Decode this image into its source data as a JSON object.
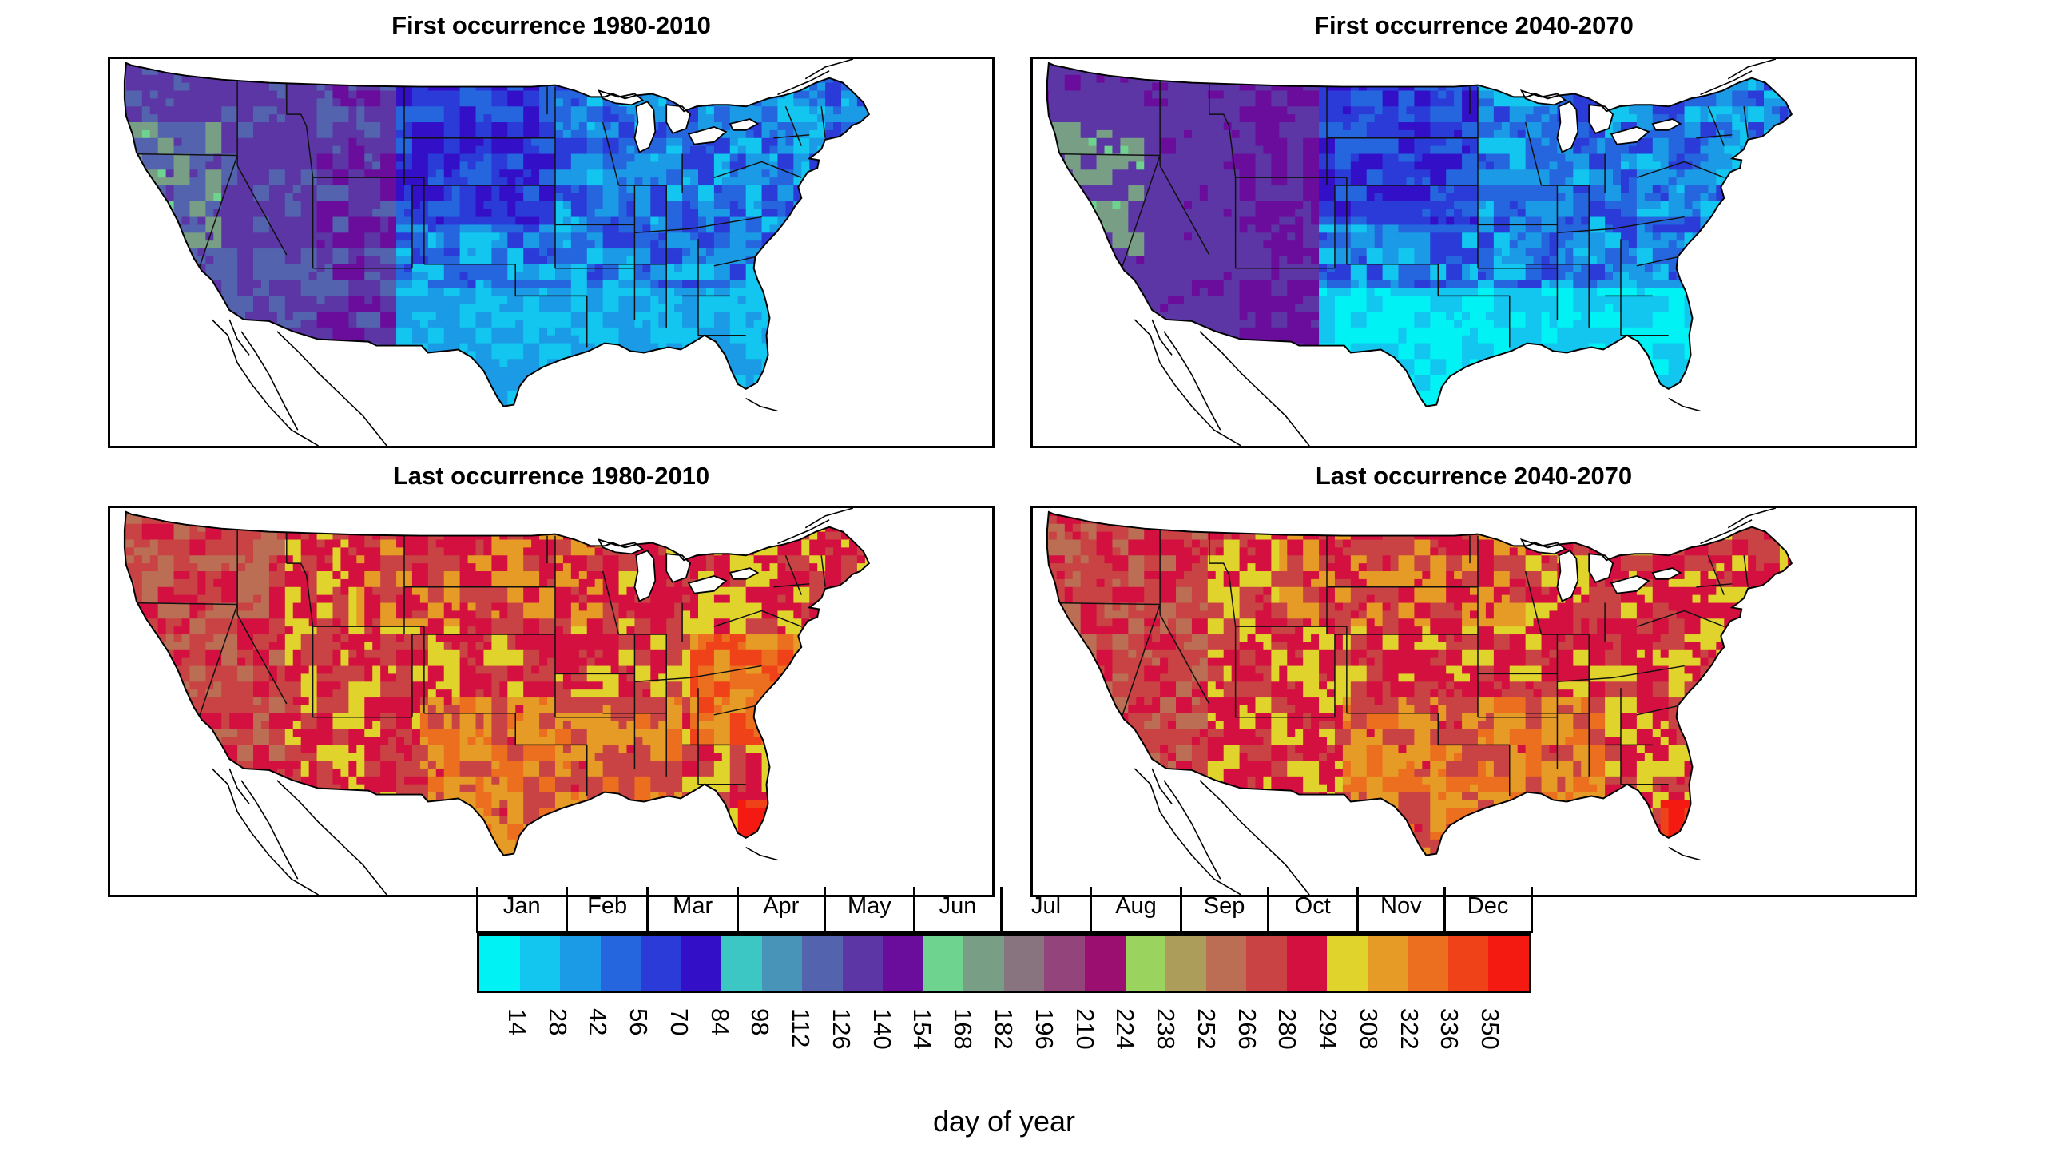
{
  "panels": [
    {
      "title": "First occurrence 1980-2010",
      "kind": "first",
      "period": "hist"
    },
    {
      "title": "First occurrence 2040-2070",
      "kind": "first",
      "period": "future"
    },
    {
      "title": "Last occurrence 1980-2010",
      "kind": "last",
      "period": "hist"
    },
    {
      "title": "Last occurrence 2040-2070",
      "kind": "last",
      "period": "future"
    }
  ],
  "legend": {
    "months": [
      "Jan",
      "Feb",
      "Mar",
      "Apr",
      "May",
      "Jun",
      "Jul",
      "Aug",
      "Sep",
      "Oct",
      "Nov",
      "Dec"
    ],
    "ticks": [
      "14",
      "28",
      "42",
      "56",
      "70",
      "84",
      "98",
      "112",
      "126",
      "140",
      "154",
      "168",
      "182",
      "196",
      "210",
      "224",
      "238",
      "252",
      "266",
      "280",
      "294",
      "308",
      "322",
      "336",
      "350"
    ],
    "colors": [
      "#00f2f4",
      "#12c6ef",
      "#1b9ae6",
      "#2566df",
      "#2a3bd8",
      "#3310c8",
      "#3cc6c4",
      "#4794b8",
      "#5363ae",
      "#5c36a5",
      "#6a0d9c",
      "#6ed38e",
      "#789f86",
      "#87747f",
      "#93447a",
      "#9a0f6f",
      "#9ad45f",
      "#ad9d5b",
      "#bb6e54",
      "#c94244",
      "#d3103f",
      "#e0d32c",
      "#e59b25",
      "#ec6f1f",
      "#f04219",
      "#f51a11"
    ],
    "axis_label": "day of year"
  }
}
